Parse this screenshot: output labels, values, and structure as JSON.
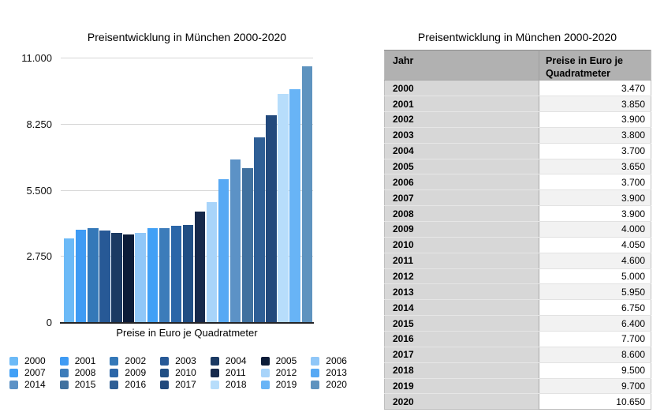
{
  "chart": {
    "title": "Preisentwicklung in München 2000-2020",
    "x_axis_label": "Preise in Euro je Quadratmeter"
  },
  "table": {
    "title": "Preisentwicklung in München 2000-2020",
    "columns": [
      "Jahr",
      "Preise in Euro je Quadratmeter"
    ],
    "rows": [
      {
        "jahr": "2000",
        "preis": "3.470"
      },
      {
        "jahr": "2001",
        "preis": "3.850"
      },
      {
        "jahr": "2002",
        "preis": "3.900"
      },
      {
        "jahr": "2003",
        "preis": "3.800"
      },
      {
        "jahr": "2004",
        "preis": "3.700"
      },
      {
        "jahr": "2005",
        "preis": "3.650"
      },
      {
        "jahr": "2006",
        "preis": "3.700"
      },
      {
        "jahr": "2007",
        "preis": "3.900"
      },
      {
        "jahr": "2008",
        "preis": "3.900"
      },
      {
        "jahr": "2009",
        "preis": "4.000"
      },
      {
        "jahr": "2010",
        "preis": "4.050"
      },
      {
        "jahr": "2011",
        "preis": "4.600"
      },
      {
        "jahr": "2012",
        "preis": "5.000"
      },
      {
        "jahr": "2013",
        "preis": "5.950"
      },
      {
        "jahr": "2014",
        "preis": "6.750"
      },
      {
        "jahr": "2015",
        "preis": "6.400"
      },
      {
        "jahr": "2016",
        "preis": "7.700"
      },
      {
        "jahr": "2017",
        "preis": "8.600"
      },
      {
        "jahr": "2018",
        "preis": "9.500"
      },
      {
        "jahr": "2019",
        "preis": "9.700"
      },
      {
        "jahr": "2020",
        "preis": "10.650"
      }
    ]
  },
  "chart_data": {
    "type": "bar",
    "title": "Preisentwicklung in München 2000-2020",
    "xlabel": "Preise in Euro je Quadratmeter",
    "ylabel": "",
    "categories": [
      "2000",
      "2001",
      "2002",
      "2003",
      "2004",
      "2005",
      "2006",
      "2007",
      "2008",
      "2009",
      "2010",
      "2011",
      "2012",
      "2013",
      "2014",
      "2015",
      "2016",
      "2017",
      "2018",
      "2019",
      "2020"
    ],
    "values": [
      3470,
      3850,
      3900,
      3800,
      3700,
      3650,
      3700,
      3900,
      3900,
      4000,
      4050,
      4600,
      5000,
      5950,
      6750,
      6400,
      7700,
      8600,
      9500,
      9700,
      10650
    ],
    "ylim": [
      0,
      11000
    ],
    "y_ticks": [
      {
        "label": "11.000",
        "value": 11000
      },
      {
        "label": "8.250",
        "value": 8250
      },
      {
        "label": "5.500",
        "value": 5500
      },
      {
        "label": "2.750",
        "value": 2750
      },
      {
        "label": "0",
        "value": 0
      }
    ],
    "grid": true,
    "legend_position": "bottom",
    "bar_colors": [
      "#6cbaf7",
      "#3f9bf4",
      "#3478b8",
      "#275996",
      "#1b3a63",
      "#0c1c38",
      "#90c7f8",
      "#41a0f6",
      "#3c7cba",
      "#2b66a8",
      "#204e84",
      "#16294b",
      "#a8d4fa",
      "#57a9f4",
      "#5c92c6",
      "#41719f",
      "#2f5f96",
      "#22497c",
      "#b7ddfb",
      "#68b4f6",
      "#5e93bf"
    ]
  }
}
